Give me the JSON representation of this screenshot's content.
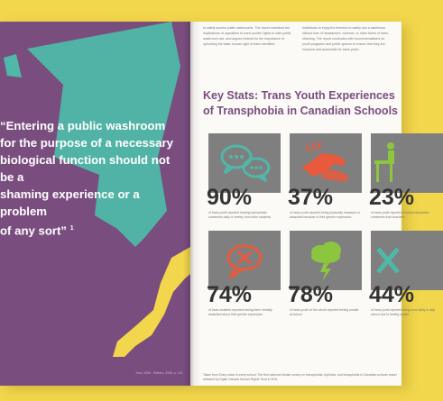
{
  "background_color": "#f2d64b",
  "left_page": {
    "background_color": "#7a4d7f",
    "accent_teal": "#4fb8a8",
    "accent_yellow": "#f2d64b",
    "quote_lines": [
      "“Entering a public washroom",
      "for the purpose of a necessary",
      "biological function should not be a",
      "shaming experience or a problem",
      "of any sort”"
    ],
    "quote_footnote": "1",
    "footer_text": "Jrow, 2008 · Reintro, 2008, p. 191"
  },
  "right_page": {
    "intro_col1": "to safely access public washrooms. The report examines the implications of opposition to trans youths’ rights to safe public washroom use, and argues instead for the importance of upholding the basic human right of trans identified",
    "intro_col2": "individuals to enjoy the freedom to safely use a washroom without fear of harassment, violence, or other forms of trans-shaming. The report concludes with recommendations for youth programs and public spaces to ensure that they are inclusive and accessible for trans youth.",
    "title_lines": [
      "Key Stats: Trans Youth Experiences",
      "of Transphobia in Canadian Schools"
    ],
    "stats": [
      {
        "percent": "90%",
        "icon": "speech-bubbles-icon",
        "description": "of trans youth reported hearing transphobic comments daily or weekly from other students"
      },
      {
        "percent": "37%",
        "icon": "grabbing-hand-icon",
        "description": "of trans youth reported being physically harassed or assaulted because of their gender expression"
      },
      {
        "percent": "23%",
        "icon": "teacher-at-desk-icon",
        "description": "of trans youth reported hearing transphobic comments from teachers"
      },
      {
        "percent": "74%",
        "icon": "speech-bubble-icon",
        "description": "of trans students reported having been verbally assaulted about their gender expression"
      },
      {
        "percent": "78%",
        "icon": "storm-cloud-icon",
        "description": "of trans youth on the whole reported feeling unsafe at school"
      },
      {
        "percent": "44%",
        "icon": "x-mark-icon",
        "description": "of trans youth reported being more likely to skip school due to feeling unsafe"
      }
    ],
    "footer_text": "Taken from Every class in every school: The first national climate survey on homophobia, biphobia, and transphobia in Canadian schools report released by Egale Canada Human Rights Trust in 2011."
  }
}
